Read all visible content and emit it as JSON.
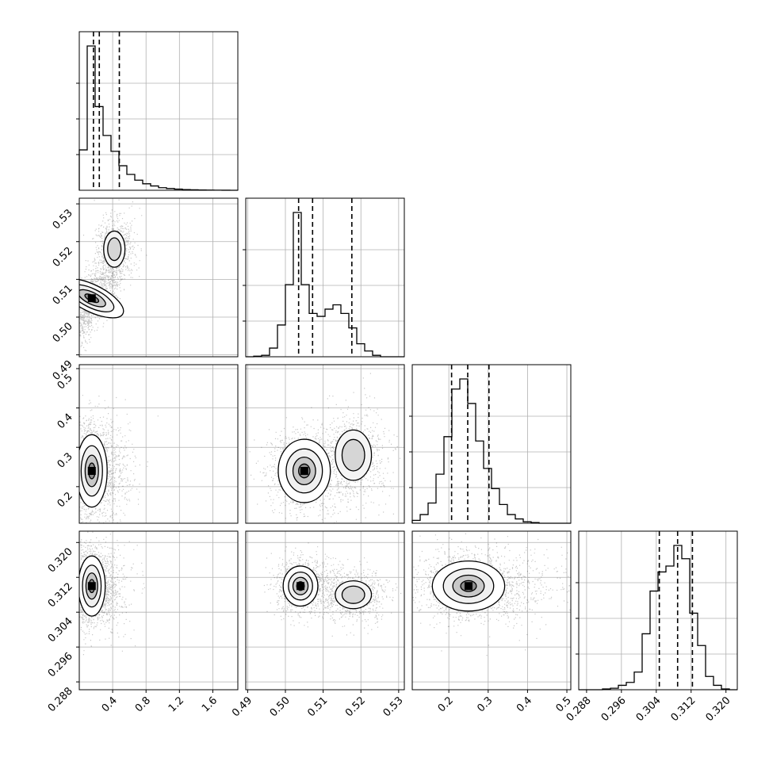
{
  "chart_data": {
    "type": "corner",
    "parameters": [
      {
        "xticks": [
          "0.4",
          "0.8",
          "1.2",
          "1.6"
        ],
        "xlim": [
          0.0,
          1.9
        ],
        "quantiles": [
          0.17,
          0.24,
          0.48
        ],
        "hist": [
          0.28,
          1.0,
          0.58,
          0.38,
          0.27,
          0.17,
          0.11,
          0.07,
          0.045,
          0.03,
          0.018,
          0.012,
          0.008,
          0.005,
          0.003,
          0.002,
          0.001,
          0.0005,
          0.0003,
          0.0002
        ]
      },
      {
        "xticks": [
          "0.49",
          "0.50",
          "0.51",
          "0.52",
          "0.53"
        ],
        "yticks": [
          "0.49",
          "0.50",
          "0.51",
          "0.52",
          "0.53"
        ],
        "lim": [
          0.4895,
          0.5315
        ],
        "quantiles": [
          0.5035,
          0.5072,
          0.5176
        ],
        "hist": [
          0.0,
          0.004,
          0.01,
          0.06,
          0.22,
          0.5,
          1.0,
          0.5,
          0.3,
          0.28,
          0.33,
          0.36,
          0.3,
          0.2,
          0.09,
          0.04,
          0.01,
          0.0,
          0.0,
          0.0
        ]
      },
      {
        "xticks": [
          "0.2",
          "0.3",
          "0.4",
          "0.5"
        ],
        "yticks": [
          "0.2",
          "0.3",
          "0.4",
          "0.5"
        ],
        "lim": [
          0.107,
          0.51
        ],
        "quantiles": [
          0.207,
          0.248,
          0.302
        ],
        "hist": [
          0.02,
          0.06,
          0.14,
          0.34,
          0.6,
          0.93,
          1.0,
          0.83,
          0.57,
          0.38,
          0.24,
          0.13,
          0.06,
          0.03,
          0.01,
          0.005,
          0.0,
          0.0,
          0.0,
          0.0
        ]
      },
      {
        "xticks": [
          "0.288",
          "0.296",
          "0.304",
          "0.312",
          "0.320"
        ],
        "yticks": [
          "0.288",
          "0.296",
          "0.304",
          "0.312",
          "0.320"
        ],
        "lim": [
          0.2862,
          0.3226
        ],
        "quantiles": [
          0.3047,
          0.3089,
          0.3123
        ],
        "hist": [
          0.0,
          0.0,
          0.0,
          0.005,
          0.01,
          0.03,
          0.05,
          0.12,
          0.38,
          0.67,
          0.8,
          0.84,
          0.98,
          0.89,
          0.52,
          0.3,
          0.09,
          0.03,
          0.005,
          0.0
        ]
      }
    ],
    "joint": [
      {
        "row": 1,
        "col": 0,
        "mode": [
          0.15,
          0.505
        ],
        "sd": [
          0.07,
          0.004
        ],
        "rho": 0.78,
        "secondary": {
          "center": [
            0.42,
            0.518
          ],
          "sd": [
            0.08,
            0.003
          ]
        }
      },
      {
        "row": 2,
        "col": 0,
        "mode": [
          0.15,
          0.24
        ],
        "sd": [
          0.08,
          0.04
        ],
        "rho": 0.0
      },
      {
        "row": 2,
        "col": 1,
        "mode": [
          0.505,
          0.24
        ],
        "sd": [
          0.003,
          0.035
        ],
        "rho": 0.0,
        "secondary": {
          "center": [
            0.518,
            0.28
          ],
          "sd": [
            0.003,
            0.04
          ]
        }
      },
      {
        "row": 3,
        "col": 0,
        "mode": [
          0.15,
          0.31
        ],
        "sd": [
          0.07,
          0.003
        ],
        "rho": 0.0
      },
      {
        "row": 3,
        "col": 1,
        "mode": [
          0.504,
          0.31
        ],
        "sd": [
          0.002,
          0.002
        ],
        "rho": 0.0,
        "secondary": {
          "center": [
            0.518,
            0.308
          ],
          "sd": [
            0.003,
            0.002
          ]
        }
      },
      {
        "row": 3,
        "col": 2,
        "mode": [
          0.25,
          0.31
        ],
        "sd": [
          0.04,
          0.0025
        ],
        "rho": 0.0
      }
    ],
    "grid": true,
    "colors": {
      "hist": "#000000",
      "quantile": "#000000",
      "points": "#000000",
      "grid": "#b0b0b0"
    }
  }
}
